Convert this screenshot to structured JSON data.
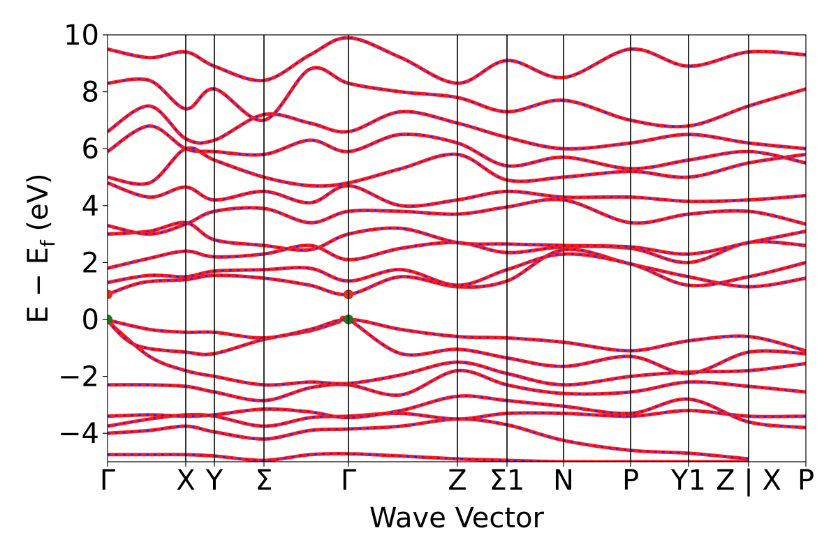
{
  "chart_data": {
    "type": "line",
    "title": "",
    "xlabel": "Wave Vector",
    "ylabel": "E − E",
    "ylabel_sub": "f",
    "ylabel_unit": " (eV)",
    "ylim": [
      -5,
      10
    ],
    "yticks": [
      10,
      8,
      6,
      4,
      2,
      0,
      -2,
      -4
    ],
    "yticklabels": [
      "10",
      "8",
      "6",
      "4",
      "2",
      "0",
      "−2",
      "−4"
    ],
    "x_range": [
      0,
      1
    ],
    "high_symbol_points": [
      {
        "label": "Γ",
        "x": 0.0
      },
      {
        "label": "X",
        "x": 0.112
      },
      {
        "label": "Y",
        "x": 0.153
      },
      {
        "label": "Σ",
        "x": 0.224
      },
      {
        "label": "Γ",
        "x": 0.345
      },
      {
        "label": "Z",
        "x": 0.501
      },
      {
        "label": "Σ1",
        "x": 0.572
      },
      {
        "label": "N",
        "x": 0.653
      },
      {
        "label": "P",
        "x": 0.749
      },
      {
        "label": "Y1",
        "x": 0.832
      },
      {
        "label": "Z | X",
        "x": 0.918
      },
      {
        "label": "P",
        "x": 1.0
      }
    ],
    "band_extrema_markers": [
      {
        "x": 0.0,
        "y": 0.88,
        "color": "#e03020"
      },
      {
        "x": 0.345,
        "y": 0.88,
        "color": "#e03020"
      },
      {
        "x": 0.0,
        "y": 0.0,
        "color": "#1a7a1a"
      },
      {
        "x": 0.345,
        "y": 0.0,
        "color": "#1a7a1a"
      }
    ],
    "series_styles": [
      {
        "color": "#ff1a1a",
        "style": "solid"
      },
      {
        "color": "#2020ff",
        "style": "dashed"
      }
    ],
    "bands": [
      {
        "x": [
          0,
          0.05,
          0.112,
          0.153,
          0.224,
          0.29,
          0.345,
          0.42,
          0.501,
          0.572,
          0.653,
          0.749,
          0.832,
          0.918
        ],
        "y": [
          -4.75,
          -4.75,
          -4.75,
          -4.8,
          -4.95,
          -4.75,
          -4.72,
          -4.8,
          -4.9,
          -4.95,
          -5.0,
          -5.0,
          -5.0,
          -5.0
        ]
      },
      {
        "x": [
          0,
          0.06,
          0.112,
          0.153,
          0.224,
          0.29,
          0.345,
          0.42,
          0.501,
          0.572,
          0.653,
          0.749,
          0.832,
          0.918
        ],
        "y": [
          -4.0,
          -3.9,
          -3.75,
          -3.95,
          -4.2,
          -3.9,
          -3.85,
          -3.75,
          -3.5,
          -3.7,
          -4.25,
          -4.6,
          -4.7,
          -4.9
        ]
      },
      {
        "x": [
          0,
          0.06,
          0.112,
          0.153,
          0.224,
          0.29,
          0.345,
          0.42,
          0.501,
          0.572,
          0.653,
          0.749,
          0.832,
          0.918,
          1.0
        ],
        "y": [
          -3.75,
          -3.5,
          -3.35,
          -3.4,
          -3.75,
          -3.45,
          -3.4,
          -3.3,
          -3.5,
          -3.3,
          -3.3,
          -3.4,
          -3.2,
          -3.4,
          -3.4
        ]
      },
      {
        "x": [
          0,
          0.06,
          0.112,
          0.153,
          0.224,
          0.29,
          0.345,
          0.42,
          0.501,
          0.572,
          0.653,
          0.749,
          0.832,
          0.918,
          1.0
        ],
        "y": [
          -3.4,
          -3.35,
          -3.4,
          -3.35,
          -3.15,
          -3.25,
          -3.45,
          -3.2,
          -2.7,
          -2.85,
          -3.05,
          -3.3,
          -2.8,
          -3.6,
          -3.8
        ]
      },
      {
        "x": [
          0,
          0.06,
          0.112,
          0.153,
          0.224,
          0.29,
          0.345,
          0.42,
          0.501,
          0.572,
          0.653,
          0.749,
          0.832,
          0.918,
          1.0
        ],
        "y": [
          -2.3,
          -2.3,
          -2.35,
          -2.55,
          -2.85,
          -2.4,
          -2.3,
          -2.65,
          -1.8,
          -2.3,
          -2.6,
          -2.55,
          -2.2,
          -2.35,
          -2.55
        ]
      },
      {
        "x": [
          0,
          0.06,
          0.112,
          0.153,
          0.224,
          0.29,
          0.345,
          0.42,
          0.501,
          0.572,
          0.653,
          0.749,
          0.832,
          0.918,
          1.0
        ],
        "y": [
          -0.05,
          -1.3,
          -1.8,
          -2.0,
          -2.3,
          -2.2,
          -2.25,
          -1.95,
          -1.5,
          -1.9,
          -2.3,
          -2.0,
          -1.85,
          -1.8,
          -1.55
        ]
      },
      {
        "x": [
          0,
          0.04,
          0.112,
          0.153,
          0.224,
          0.29,
          0.33,
          0.345,
          0.42,
          0.501,
          0.572,
          0.653,
          0.749,
          0.832,
          0.918,
          1.0
        ],
        "y": [
          -0.05,
          -0.9,
          -1.15,
          -1.2,
          -0.7,
          -0.4,
          -0.1,
          0.0,
          -1.2,
          -1.05,
          -1.35,
          -1.65,
          -1.3,
          -1.9,
          -1.15,
          -1.2
        ]
      },
      {
        "x": [
          0,
          0.06,
          0.112,
          0.153,
          0.224,
          0.29,
          0.345,
          0.42,
          0.501,
          0.572,
          0.653,
          0.749,
          0.832,
          0.918,
          1.0
        ],
        "y": [
          -0.02,
          -0.35,
          -0.45,
          -0.45,
          -0.65,
          -0.35,
          0.0,
          -0.35,
          -0.6,
          -0.65,
          -0.8,
          -1.1,
          -0.75,
          -0.6,
          -1.1
        ]
      },
      {
        "x": [
          0,
          0.05,
          0.112,
          0.153,
          0.224,
          0.29,
          0.345,
          0.42,
          0.501,
          0.572,
          0.653,
          0.749,
          0.832,
          0.918,
          1.0
        ],
        "y": [
          0.88,
          1.3,
          1.4,
          1.55,
          1.45,
          1.2,
          0.88,
          1.5,
          1.15,
          1.35,
          2.45,
          1.95,
          1.5,
          1.15,
          1.45
        ]
      },
      {
        "x": [
          0,
          0.06,
          0.112,
          0.153,
          0.224,
          0.29,
          0.345,
          0.42,
          0.501,
          0.572,
          0.653,
          0.749,
          0.832,
          0.918,
          1.0
        ],
        "y": [
          1.3,
          1.55,
          1.5,
          1.7,
          1.75,
          1.8,
          1.35,
          1.75,
          1.2,
          1.75,
          2.3,
          1.95,
          1.2,
          1.5,
          2.0
        ]
      },
      {
        "x": [
          0,
          0.06,
          0.112,
          0.153,
          0.224,
          0.29,
          0.345,
          0.42,
          0.501,
          0.572,
          0.653,
          0.749,
          0.832,
          0.918,
          1.0
        ],
        "y": [
          1.8,
          2.15,
          2.4,
          2.2,
          2.3,
          2.6,
          2.1,
          2.5,
          2.7,
          2.35,
          2.55,
          2.5,
          2.0,
          2.7,
          2.6
        ]
      },
      {
        "x": [
          0,
          0.06,
          0.112,
          0.153,
          0.224,
          0.29,
          0.345,
          0.42,
          0.501,
          0.572,
          0.653,
          0.749,
          0.832,
          0.918,
          1.0
        ],
        "y": [
          3.0,
          3.1,
          3.4,
          2.8,
          2.6,
          2.45,
          3.0,
          3.2,
          2.7,
          2.65,
          2.6,
          2.55,
          2.3,
          2.7,
          3.1
        ]
      },
      {
        "x": [
          0,
          0.06,
          0.112,
          0.153,
          0.224,
          0.29,
          0.345,
          0.42,
          0.501,
          0.572,
          0.653,
          0.749,
          0.832,
          0.918,
          1.0
        ],
        "y": [
          3.3,
          3.0,
          3.35,
          3.8,
          3.9,
          3.4,
          3.8,
          3.8,
          3.7,
          3.95,
          4.2,
          3.4,
          3.7,
          3.8,
          3.35
        ]
      },
      {
        "x": [
          0,
          0.06,
          0.112,
          0.153,
          0.224,
          0.29,
          0.345,
          0.42,
          0.501,
          0.572,
          0.653,
          0.749,
          0.832,
          0.918,
          1.0
        ],
        "y": [
          4.8,
          4.3,
          4.65,
          4.2,
          4.5,
          4.1,
          4.7,
          4.0,
          4.2,
          4.5,
          4.3,
          4.3,
          4.15,
          4.2,
          4.35
        ]
      },
      {
        "x": [
          0,
          0.06,
          0.112,
          0.153,
          0.224,
          0.29,
          0.345,
          0.42,
          0.501,
          0.572,
          0.653,
          0.749,
          0.832,
          0.918,
          1.0
        ],
        "y": [
          5.0,
          4.8,
          6.0,
          5.6,
          5.0,
          4.7,
          4.8,
          5.3,
          5.8,
          4.9,
          5.0,
          5.2,
          5.0,
          5.5,
          5.8
        ]
      },
      {
        "x": [
          0,
          0.06,
          0.112,
          0.153,
          0.224,
          0.29,
          0.345,
          0.42,
          0.501,
          0.572,
          0.653,
          0.749,
          0.832,
          0.918,
          1.0
        ],
        "y": [
          5.9,
          6.8,
          6.0,
          5.9,
          5.8,
          6.3,
          5.9,
          6.5,
          6.2,
          5.4,
          5.7,
          5.3,
          5.6,
          5.9,
          5.5
        ]
      },
      {
        "x": [
          0,
          0.06,
          0.112,
          0.153,
          0.224,
          0.29,
          0.345,
          0.42,
          0.501,
          0.572,
          0.653,
          0.749,
          0.832,
          0.918,
          1.0
        ],
        "y": [
          6.6,
          7.5,
          6.35,
          6.3,
          7.2,
          6.9,
          6.6,
          7.3,
          6.9,
          6.4,
          6.0,
          6.2,
          6.5,
          6.2,
          6.0
        ]
      },
      {
        "x": [
          0,
          0.06,
          0.112,
          0.153,
          0.224,
          0.29,
          0.345,
          0.42,
          0.501,
          0.572,
          0.653,
          0.749,
          0.832,
          0.918,
          1.0
        ],
        "y": [
          8.3,
          8.4,
          7.4,
          8.1,
          7.0,
          8.8,
          8.3,
          8.0,
          7.8,
          7.3,
          7.7,
          7.0,
          6.8,
          7.5,
          8.1
        ]
      },
      {
        "x": [
          0,
          0.06,
          0.112,
          0.153,
          0.224,
          0.29,
          0.345,
          0.42,
          0.501,
          0.572,
          0.653,
          0.749,
          0.832,
          0.918,
          1.0
        ],
        "y": [
          9.5,
          9.2,
          9.4,
          8.9,
          8.4,
          9.3,
          9.9,
          9.2,
          8.3,
          9.1,
          8.5,
          9.5,
          8.9,
          9.4,
          9.3
        ]
      }
    ]
  }
}
